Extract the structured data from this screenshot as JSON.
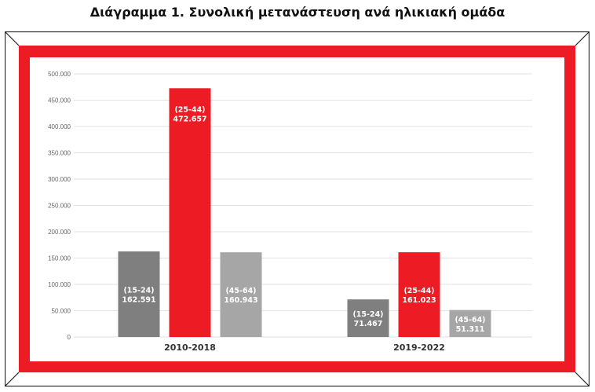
{
  "chart_data": {
    "type": "bar",
    "title": "Διάγραμμα 1. Συνολική μετανάστευση ανά ηλικιακή ομάδα",
    "categories": [
      "2010-2018",
      "2019-2022"
    ],
    "series": [
      {
        "name": "(15-24)",
        "values": [
          162591,
          71467
        ],
        "labels": [
          "162.591",
          "71.467"
        ],
        "color": "#7f7f7f"
      },
      {
        "name": "(25-44)",
        "values": [
          472657,
          161023
        ],
        "labels": [
          "472.657",
          "161.023"
        ],
        "color": "#ed1c24"
      },
      {
        "name": "(45-64)",
        "values": [
          160943,
          51311
        ],
        "labels": [
          "160.943",
          "51.311"
        ],
        "color": "#a6a6a6"
      }
    ],
    "ylim": [
      0,
      500000
    ],
    "yticks": [
      0,
      50000,
      100000,
      150000,
      200000,
      250000,
      300000,
      350000,
      400000,
      450000,
      500000
    ],
    "ytick_labels": [
      "0",
      "50.000",
      "100.000",
      "150.000",
      "200.000",
      "250.000",
      "300.000",
      "350.000",
      "400.000",
      "450.000",
      "500.000"
    ],
    "grid": true,
    "legend": "none",
    "xlabel": "",
    "ylabel": ""
  },
  "frame_color": "#ed1c24"
}
